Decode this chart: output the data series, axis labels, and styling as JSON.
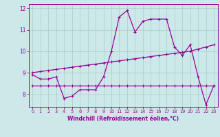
{
  "xlabel": "Windchill (Refroidissement éolien,°C)",
  "x_values": [
    0,
    1,
    2,
    3,
    4,
    5,
    6,
    7,
    8,
    9,
    10,
    11,
    12,
    13,
    14,
    15,
    16,
    17,
    18,
    19,
    20,
    21,
    22,
    23
  ],
  "main_line": [
    8.9,
    8.7,
    8.7,
    8.8,
    7.8,
    7.9,
    8.2,
    8.2,
    8.2,
    8.8,
    10.0,
    11.6,
    11.9,
    10.9,
    11.4,
    11.5,
    11.5,
    11.5,
    10.2,
    9.8,
    10.3,
    8.8,
    7.5,
    8.4
  ],
  "upper_line": [
    9.0,
    9.05,
    9.1,
    9.15,
    9.2,
    9.25,
    9.3,
    9.35,
    9.4,
    9.45,
    9.5,
    9.55,
    9.6,
    9.65,
    9.7,
    9.75,
    9.8,
    9.85,
    9.9,
    9.95,
    10.0,
    10.1,
    10.2,
    10.3
  ],
  "lower_line": [
    8.4,
    8.4,
    8.4,
    8.4,
    8.4,
    8.4,
    8.4,
    8.4,
    8.4,
    8.4,
    8.4,
    8.4,
    8.4,
    8.4,
    8.4,
    8.4,
    8.4,
    8.4,
    8.4,
    8.4,
    8.4,
    8.4,
    8.4,
    8.4
  ],
  "line_color": "#990099",
  "bg_color": "#cce8e8",
  "grid_color": "#aacccc",
  "ylim": [
    7.4,
    12.2
  ],
  "yticks": [
    8,
    9,
    10,
    11,
    12
  ],
  "xlim": [
    -0.5,
    23.5
  ]
}
